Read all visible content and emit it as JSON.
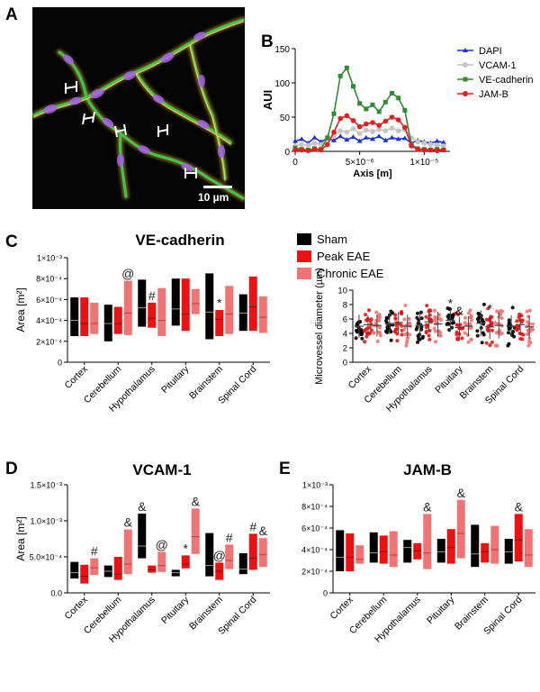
{
  "panels": {
    "A": {
      "letter": "A",
      "scale_bar": "10 µm"
    },
    "B": {
      "letter": "B"
    },
    "C": {
      "letter": "C",
      "title": "VE-cadherin"
    },
    "D": {
      "letter": "D",
      "title": "VCAM-1"
    },
    "E": {
      "letter": "E",
      "title": "JAM-B"
    }
  },
  "colors": {
    "sham": "#000000",
    "peak": "#ee1111",
    "chronic": "#f07474",
    "dapi": "#1a34d8",
    "vcam": "#c4c4c4",
    "vecad": "#2e8b2e",
    "jamb": "#e81c1c"
  },
  "chart_data": [
    {
      "id": "B",
      "type": "line",
      "xlabel": "Axis [m]",
      "ylabel": "AUI",
      "xlim": [
        0,
        1.2e-05
      ],
      "ylim": [
        0,
        150
      ],
      "xticks": [
        "0",
        "5×10⁻⁶",
        "1×10⁻⁵"
      ],
      "yticks": [
        "0",
        "50",
        "100",
        "150"
      ],
      "legend": "top-right",
      "series": [
        {
          "name": "DAPI",
          "color": "#1a34d8",
          "marker": "triangle",
          "x": [
            0,
            5e-07,
            1e-06,
            1.5e-06,
            2e-06,
            2.5e-06,
            3e-06,
            3.5e-06,
            4e-06,
            4.5e-06,
            5e-06,
            5.5e-06,
            6e-06,
            6.5e-06,
            7e-06,
            7.5e-06,
            8e-06,
            8.5e-06,
            9e-06,
            9.5e-06,
            1e-05,
            1.05e-05,
            1.1e-05,
            1.15e-05
          ],
          "y": [
            15,
            18,
            12,
            20,
            14,
            19,
            16,
            22,
            17,
            21,
            15,
            20,
            18,
            22,
            16,
            20,
            18,
            19,
            12,
            16,
            14,
            12,
            15,
            13
          ]
        },
        {
          "name": "VCAM-1",
          "color": "#c4c4c4",
          "marker": "circle",
          "x": [
            0,
            5e-07,
            1e-06,
            1.5e-06,
            2e-06,
            2.5e-06,
            3e-06,
            3.5e-06,
            4e-06,
            4.5e-06,
            5e-06,
            5.5e-06,
            6e-06,
            6.5e-06,
            7e-06,
            7.5e-06,
            8e-06,
            8.5e-06,
            9e-06,
            9.5e-06,
            1e-05,
            1.05e-05,
            1.1e-05,
            1.15e-05
          ],
          "y": [
            8,
            10,
            9,
            12,
            10,
            18,
            22,
            30,
            28,
            33,
            26,
            31,
            29,
            32,
            30,
            34,
            30,
            32,
            20,
            14,
            12,
            10,
            9,
            8
          ]
        },
        {
          "name": "VE-cadherin",
          "color": "#2e8b2e",
          "marker": "square",
          "x": [
            0,
            5e-07,
            1e-06,
            1.5e-06,
            2e-06,
            2.5e-06,
            3e-06,
            3.5e-06,
            4e-06,
            4.5e-06,
            5e-06,
            5.5e-06,
            6e-06,
            6.5e-06,
            7e-06,
            7.5e-06,
            8e-06,
            8.5e-06,
            9e-06,
            9.5e-06,
            1e-05,
            1.05e-05,
            1.1e-05,
            1.15e-05
          ],
          "y": [
            5,
            3,
            2,
            4,
            3,
            20,
            55,
            110,
            122,
            95,
            70,
            62,
            68,
            58,
            72,
            85,
            78,
            60,
            10,
            4,
            3,
            2,
            3,
            2
          ]
        },
        {
          "name": "JAM-B",
          "color": "#e81c1c",
          "marker": "circle",
          "x": [
            0,
            5e-07,
            1e-06,
            1.5e-06,
            2e-06,
            2.5e-06,
            3e-06,
            3.5e-06,
            4e-06,
            4.5e-06,
            5e-06,
            5.5e-06,
            6e-06,
            6.5e-06,
            7e-06,
            7.5e-06,
            8e-06,
            8.5e-06,
            9e-06,
            9.5e-06,
            1e-05,
            1.05e-05,
            1.1e-05,
            1.15e-05
          ],
          "y": [
            2,
            2,
            1,
            3,
            2,
            10,
            28,
            48,
            52,
            45,
            36,
            40,
            42,
            38,
            44,
            50,
            46,
            35,
            8,
            3,
            2,
            2,
            1,
            2
          ]
        }
      ]
    },
    {
      "id": "C-left",
      "type": "bar",
      "subtype": "floating-min-max",
      "title": "VE-cadherin",
      "ylabel": "Area [m²]",
      "ylim": [
        0,
        0.001
      ],
      "yticks": [
        "0",
        "2×10⁻⁴",
        "4×10⁻⁴",
        "6×10⁻⁴",
        "8×10⁻⁴",
        "1×10⁻³"
      ],
      "categories": [
        "Cortex",
        "Cerebellum",
        "Hypothalamus",
        "Pituitary",
        "Brainstem",
        "Spinal Cord"
      ],
      "legend": "right",
      "series": [
        {
          "name": "Sham",
          "min": [
            0.00025,
            0.0002,
            0.00034,
            0.00035,
            0.00022,
            0.0003
          ],
          "max": [
            0.00062,
            0.00055,
            0.00079,
            0.0008,
            0.00085,
            0.00065
          ],
          "mean": [
            0.0004,
            0.00037,
            0.00052,
            0.00051,
            0.00048,
            0.00047
          ]
        },
        {
          "name": "Peak EAE",
          "min": [
            0.00025,
            0.00027,
            0.00033,
            0.0003,
            0.00025,
            0.0003
          ],
          "max": [
            0.00062,
            0.00053,
            0.00057,
            0.0008,
            0.0005,
            0.00082
          ],
          "mean": [
            0.00037,
            0.00037,
            0.00042,
            0.00046,
            0.00041,
            0.00053
          ]
        },
        {
          "name": "Chronic EAE",
          "min": [
            0.00027,
            0.00026,
            0.00025,
            0.00046,
            0.00027,
            0.00028
          ],
          "max": [
            0.00057,
            0.00078,
            0.00071,
            0.0007,
            0.00073,
            0.00063
          ],
          "mean": [
            0.00037,
            0.00047,
            0.0004,
            0.00056,
            0.00046,
            0.00043
          ]
        }
      ],
      "annotations": [
        {
          "category": "Cerebellum",
          "series": "Chronic EAE",
          "text": "@"
        },
        {
          "category": "Hypothalamus",
          "series": "Peak EAE",
          "text": "#"
        },
        {
          "category": "Brainstem",
          "series": "Peak EAE",
          "text": "*"
        }
      ]
    },
    {
      "id": "C-right",
      "type": "scatter",
      "ylabel": "Microvessel diameter (µm)",
      "ylim": [
        0,
        10
      ],
      "yticks": [
        "0",
        "2",
        "4",
        "6",
        "8",
        "10"
      ],
      "categories": [
        "Cortex",
        "Cerebellum",
        "Hypothalamus",
        "Pituitary",
        "Brainstem",
        "Spinal Cord"
      ],
      "series": [
        {
          "name": "Sham",
          "mean": [
            5.0,
            5.3,
            5.1,
            5.8,
            5.4,
            5.0
          ],
          "sd": [
            1.6,
            1.4,
            1.9,
            1.6,
            1.8,
            1.5
          ]
        },
        {
          "name": "Peak EAE",
          "mean": [
            5.2,
            5.5,
            5.6,
            4.8,
            4.9,
            5.2
          ],
          "sd": [
            1.3,
            1.5,
            1.4,
            1.5,
            1.7,
            1.3
          ]
        },
        {
          "name": "Chronic EAE",
          "mean": [
            5.1,
            5.0,
            5.3,
            5.0,
            5.1,
            4.9
          ],
          "sd": [
            1.5,
            1.6,
            1.7,
            1.4,
            1.8,
            1.6
          ]
        }
      ],
      "annotations": [
        {
          "category": "Pituitary",
          "series": "Sham",
          "text": "*"
        },
        {
          "category": "Pituitary",
          "series": "Peak EAE",
          "text": "&"
        },
        {
          "category": "Brainstem",
          "series": "Peak EAE",
          "text": "*"
        }
      ]
    },
    {
      "id": "D",
      "type": "bar",
      "subtype": "floating-min-max",
      "title": "VCAM-1",
      "ylabel": "Area [m²]",
      "ylim": [
        0,
        0.0015
      ],
      "yticks": [
        "0.0",
        "5.0×10⁻⁴",
        "1.0×10⁻³",
        "1.5×10⁻³"
      ],
      "categories": [
        "Cortex",
        "Cerebellum",
        "Hypothalamus",
        "Pituitary",
        "Brainstem",
        "Spinal Cord"
      ],
      "series": [
        {
          "name": "Sham",
          "min": [
            0.0002,
            0.00022,
            0.00048,
            0.00023,
            0.00023,
            0.00026
          ],
          "max": [
            0.00043,
            0.00038,
            0.0011,
            0.00032,
            0.00083,
            0.00055
          ],
          "mean": [
            0.00028,
            0.0003,
            0.00065,
            0.00028,
            0.00038,
            0.00033
          ]
        },
        {
          "name": "Peak EAE",
          "min": [
            0.00013,
            0.00018,
            0.00028,
            0.00034,
            0.00018,
            0.00032
          ],
          "max": [
            0.00039,
            0.0005,
            0.00038,
            0.00052,
            0.00042,
            0.00082
          ],
          "mean": [
            0.00023,
            0.00026,
            0.00032,
            0.0004,
            0.0003,
            0.00048
          ]
        },
        {
          "name": "Chronic EAE",
          "min": [
            0.00025,
            0.00026,
            0.00029,
            0.00054,
            0.00033,
            0.00036
          ],
          "max": [
            0.00048,
            0.00088,
            0.00057,
            0.00117,
            0.00067,
            0.00076
          ],
          "mean": [
            0.00035,
            0.0004,
            0.00038,
            0.00078,
            0.00045,
            0.00053
          ]
        }
      ],
      "annotations": [
        {
          "category": "Cortex",
          "series": "Chronic EAE",
          "text": "#"
        },
        {
          "category": "Cerebellum",
          "series": "Chronic EAE",
          "text": "&"
        },
        {
          "category": "Hypothalamus",
          "series": "Sham",
          "text": "&"
        },
        {
          "category": "Hypothalamus",
          "series": "Chronic EAE",
          "text": "@"
        },
        {
          "category": "Pituitary",
          "series": "Peak EAE",
          "text": "*"
        },
        {
          "category": "Pituitary",
          "series": "Chronic EAE",
          "text": "&"
        },
        {
          "category": "Brainstem",
          "series": "Peak EAE",
          "text": "@"
        },
        {
          "category": "Brainstem",
          "series": "Chronic EAE",
          "text": "#"
        },
        {
          "category": "Spinal Cord",
          "series": "Peak EAE",
          "text": "#"
        },
        {
          "category": "Spinal Cord",
          "series": "Chronic EAE",
          "text": "&"
        }
      ]
    },
    {
      "id": "E",
      "type": "bar",
      "subtype": "floating-min-max",
      "title": "JAM-B",
      "ylim": [
        0,
        0.001
      ],
      "yticks": [
        "0",
        "2×10⁻⁴",
        "4×10⁻⁴",
        "6×10⁻⁴",
        "8×10⁻⁴",
        "1×10⁻³"
      ],
      "categories": [
        "Cortex",
        "Cerebellum",
        "Hypothalamus",
        "Pituitary",
        "Brainstem",
        "Spinal Cord"
      ],
      "series": [
        {
          "name": "Sham",
          "min": [
            0.0002,
            0.00028,
            0.00028,
            0.00028,
            0.00024,
            0.00027
          ],
          "max": [
            0.00058,
            0.00056,
            0.00049,
            0.0005,
            0.00063,
            0.0005
          ],
          "mean": [
            0.00033,
            0.00037,
            0.00042,
            0.00038,
            0.00036,
            0.00038
          ]
        },
        {
          "name": "Peak EAE",
          "min": [
            0.0002,
            0.00027,
            0.00031,
            0.00027,
            0.00028,
            0.00029
          ],
          "max": [
            0.00055,
            0.00053,
            0.00046,
            0.00059,
            0.00046,
            0.00073
          ],
          "mean": [
            0.00033,
            0.00038,
            0.00039,
            0.00042,
            0.00038,
            0.00049
          ]
        },
        {
          "name": "Chronic EAE",
          "min": [
            0.00027,
            0.00024,
            0.00022,
            0.00032,
            0.00027,
            0.00024
          ],
          "max": [
            0.00044,
            0.00057,
            0.00073,
            0.00086,
            0.00062,
            0.00059
          ],
          "mean": [
            0.00031,
            0.00035,
            0.00037,
            0.00055,
            0.0004,
            0.00035
          ]
        }
      ],
      "annotations": [
        {
          "category": "Hypothalamus",
          "series": "Chronic EAE",
          "text": "&"
        },
        {
          "category": "Pituitary",
          "series": "Chronic EAE",
          "text": "&"
        },
        {
          "category": "Spinal Cord",
          "series": "Peak EAE",
          "text": "&"
        }
      ]
    }
  ]
}
